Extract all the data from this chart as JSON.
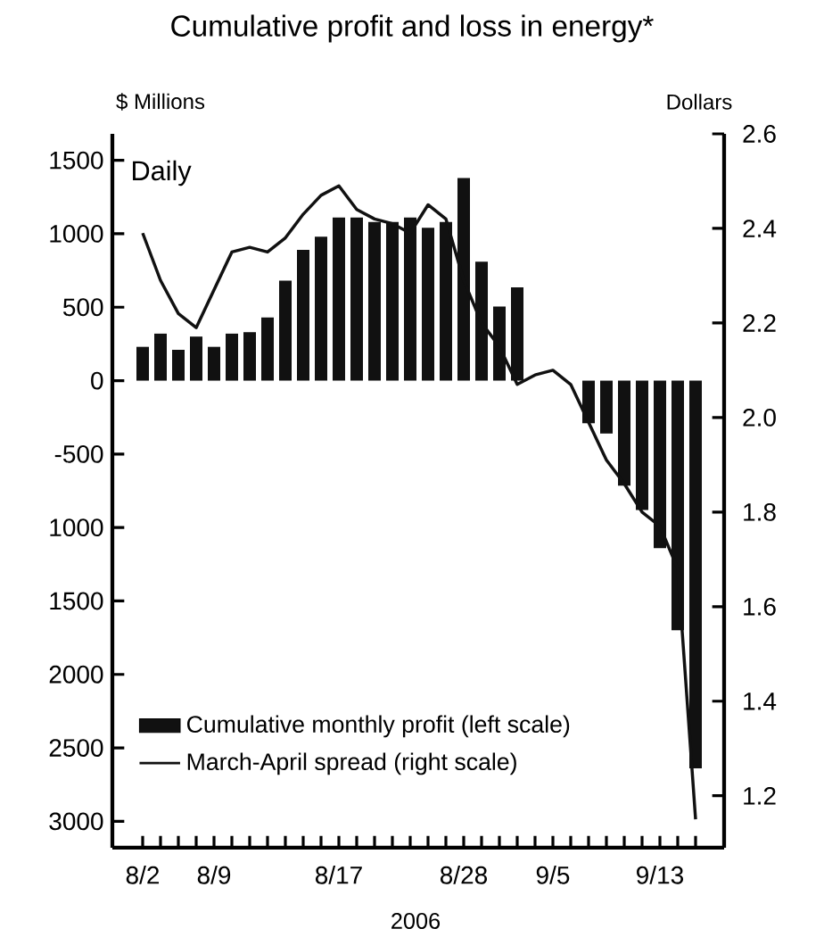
{
  "chart_data": {
    "type": "bar",
    "title": "Cumulative profit and loss in energy*",
    "ylabel": "$ Millions",
    "y2label": "Dollars",
    "xlabel": "2006",
    "annotations": [
      "Daily"
    ],
    "categories": [
      "8/2",
      null,
      null,
      null,
      "8/9",
      null,
      null,
      null,
      null,
      null,
      null,
      "8/17",
      null,
      null,
      null,
      null,
      null,
      null,
      "8/28",
      null,
      null,
      null,
      null,
      "9/5",
      null,
      null,
      null,
      null,
      null,
      "9/13",
      null,
      null
    ],
    "series": [
      {
        "name": "Cumulative monthly profit (left scale)",
        "color": "#111111",
        "values": [
          230,
          320,
          210,
          300,
          230,
          320,
          330,
          430,
          680,
          890,
          980,
          1110,
          1110,
          1080,
          1080,
          1110,
          1040,
          1080,
          1380,
          810,
          505,
          635,
          null,
          null,
          null,
          -290,
          -360,
          -715,
          -880,
          -1140,
          -1700,
          -2640
        ]
      },
      {
        "name": "March-April spread (right scale)",
        "type": "line",
        "axis": "y2",
        "color": "#111111",
        "values": [
          2.39,
          2.29,
          2.22,
          2.19,
          2.27,
          2.35,
          2.36,
          2.35,
          2.38,
          2.43,
          2.47,
          2.49,
          2.44,
          2.42,
          2.41,
          2.39,
          2.45,
          2.42,
          2.29,
          2.2,
          2.15,
          2.07,
          2.09,
          2.1,
          2.07,
          1.99,
          1.91,
          1.86,
          1.8,
          1.77,
          1.68,
          1.15
        ]
      }
    ],
    "ylim": [
      -3180,
      1680
    ],
    "yticks": [
      1500,
      1000,
      500,
      0,
      -500,
      {
        "value": -1000,
        "label": "1000"
      },
      {
        "value": -1500,
        "label": "1500"
      },
      {
        "value": -2000,
        "label": "2000"
      },
      {
        "value": -2500,
        "label": "2500"
      },
      {
        "value": -3000,
        "label": "3000"
      }
    ],
    "y2lim": [
      1.09,
      2.6
    ],
    "y2ticks": [
      {
        "value": 1.2,
        "label": "1.2"
      },
      {
        "value": 1.4,
        "label": "1.4"
      },
      {
        "value": 1.6,
        "label": "1.6"
      },
      {
        "value": 1.8,
        "label": "1.8"
      },
      {
        "value": 2.0,
        "label": "2.0"
      },
      {
        "value": 2.2,
        "label": "2.2"
      },
      {
        "value": 2.4,
        "label": "2.4"
      },
      {
        "value": 2.6,
        "label": "2.6"
      }
    ],
    "legend": "bottom left"
  }
}
